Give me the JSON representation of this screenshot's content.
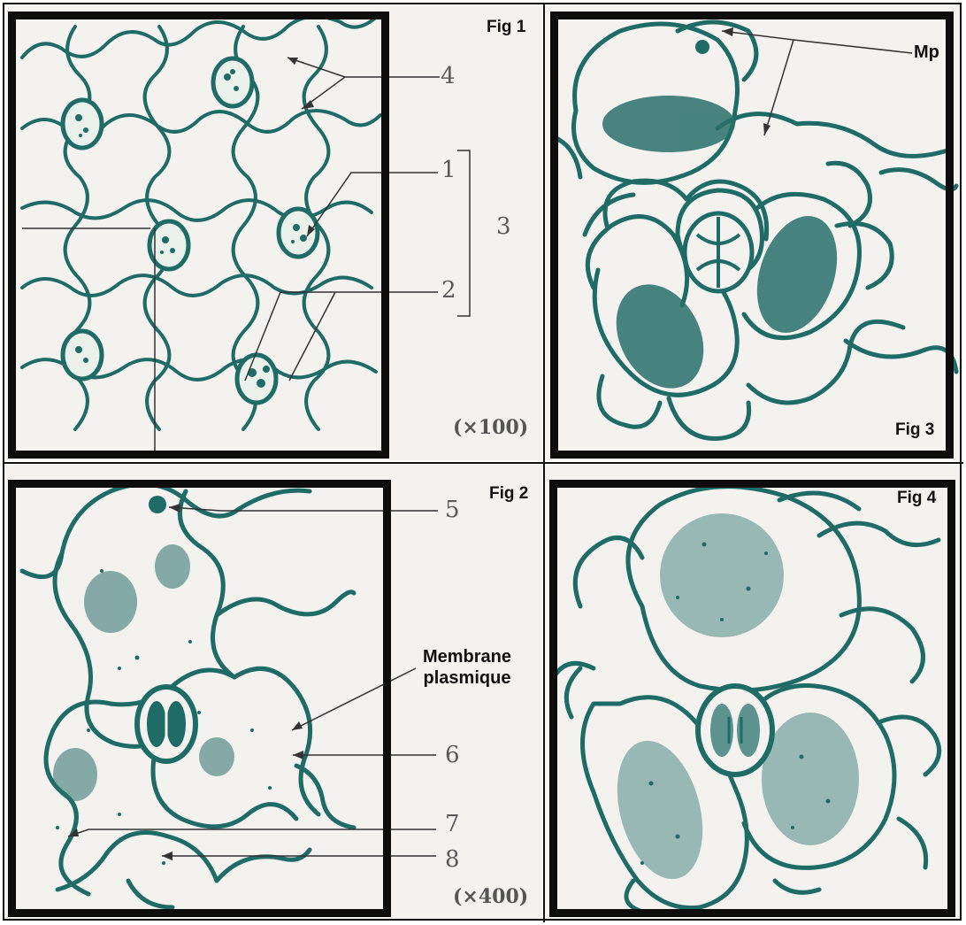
{
  "figures": [
    {
      "id": "fig1",
      "label": "Fig 1",
      "magnification": "(×100)",
      "callouts": [
        "1",
        "2",
        "3",
        "4"
      ]
    },
    {
      "id": "fig2",
      "label": "Fig 2",
      "magnification": "(×400)",
      "callouts": [
        "5",
        "6",
        "7",
        "8"
      ],
      "annotation_line1": "Membrane",
      "annotation_line2": "plasmique"
    },
    {
      "id": "fig3",
      "label": "Fig 3",
      "annotation": "Mp"
    },
    {
      "id": "fig4",
      "label": "Fig 4"
    }
  ],
  "colors": {
    "cell_wall": "#1f6b66",
    "cytoplasm_stipple": "#2a706b",
    "background": "#f3f2ee",
    "frame": "#0d0d0d"
  }
}
